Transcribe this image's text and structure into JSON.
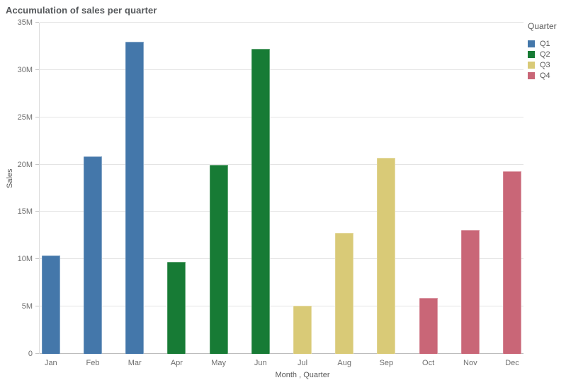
{
  "title": "Accumulation of sales per quarter",
  "chart_data": {
    "type": "bar",
    "title": "Accumulation of sales per quarter",
    "xlabel": "Month , Quarter",
    "ylabel": "Sales",
    "ylim_millions": [
      0,
      35
    ],
    "grid": true,
    "legend_position": "right",
    "y_ticks": [
      {
        "value": 0,
        "label": "0"
      },
      {
        "value": 5,
        "label": "5M"
      },
      {
        "value": 10,
        "label": "10M"
      },
      {
        "value": 15,
        "label": "15M"
      },
      {
        "value": 20,
        "label": "20M"
      },
      {
        "value": 25,
        "label": "25M"
      },
      {
        "value": 30,
        "label": "30M"
      },
      {
        "value": 35,
        "label": "35M"
      }
    ],
    "categories": [
      "Jan",
      "Feb",
      "Mar",
      "Apr",
      "May",
      "Jun",
      "Jul",
      "Aug",
      "Sep",
      "Oct",
      "Nov",
      "Dec"
    ],
    "values_millions": [
      10.4,
      20.9,
      33.0,
      9.7,
      20.0,
      32.2,
      5.1,
      12.8,
      20.7,
      5.9,
      13.1,
      19.3
    ],
    "quarters": [
      "Q1",
      "Q1",
      "Q1",
      "Q2",
      "Q2",
      "Q2",
      "Q3",
      "Q3",
      "Q3",
      "Q4",
      "Q4",
      "Q4"
    ],
    "quarter_colors": {
      "Q1": "#4477aa",
      "Q2": "#177b35",
      "Q3": "#d9ca77",
      "Q4": "#c96677"
    },
    "legend": {
      "title": "Quarter",
      "entries": [
        {
          "label": "Q1",
          "color": "#4477aa"
        },
        {
          "label": "Q2",
          "color": "#177b35"
        },
        {
          "label": "Q3",
          "color": "#d9ca77"
        },
        {
          "label": "Q4",
          "color": "#c96677"
        }
      ]
    }
  }
}
